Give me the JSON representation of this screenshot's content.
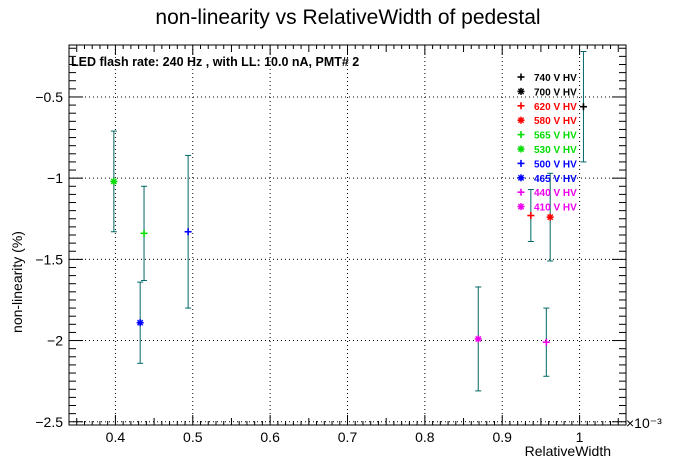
{
  "chart_data": {
    "type": "scatter",
    "title": "non-linearity vs RelativeWidth of pedestal",
    "xlabel": "RelativeWidth",
    "ylabel": "non-linearity (%)",
    "x_exponent_label": "×10⁻³",
    "annotation": "LED flash rate: 240 Hz , with LL: 10.0 nA, PMT# 2",
    "xlim": [
      0.34,
      1.06
    ],
    "ylim": [
      -2.52,
      -0.18
    ],
    "x_ticks": [
      0.4,
      0.5,
      0.6,
      0.7,
      0.8,
      0.9,
      1.0
    ],
    "x_tick_labels": [
      "0.4",
      "0.5",
      "0.6",
      "0.7",
      "0.8",
      "0.9",
      "1"
    ],
    "y_ticks": [
      -2.5,
      -2.0,
      -1.5,
      -1.0,
      -0.5
    ],
    "y_tick_labels": [
      "−2.5",
      "−2",
      "−1.5",
      "−1",
      "−0.5"
    ],
    "grid": true,
    "legend_position": "top-right",
    "error_bar_color": "#006666",
    "series": [
      {
        "name": "740 V HV",
        "color": "#000000",
        "marker": "plus",
        "x": 1.005,
        "y": -0.56,
        "err": 0.34
      },
      {
        "name": "700 V HV",
        "color": "#000000",
        "marker": "star",
        "x": null,
        "y": null,
        "err": null
      },
      {
        "name": "620 V HV",
        "color": "#ff0000",
        "marker": "plus",
        "x": 0.937,
        "y": -1.23,
        "err": 0.16
      },
      {
        "name": "580 V HV",
        "color": "#ff0000",
        "marker": "star",
        "x": 0.962,
        "y": -1.24,
        "err": 0.27
      },
      {
        "name": "565 V HV",
        "color": "#00dd00",
        "marker": "plus",
        "x": 0.437,
        "y": -1.34,
        "err": 0.29
      },
      {
        "name": "530 V HV",
        "color": "#00dd00",
        "marker": "star",
        "x": 0.398,
        "y": -1.02,
        "err": 0.31
      },
      {
        "name": "500 V HV",
        "color": "#0000ff",
        "marker": "plus",
        "x": 0.494,
        "y": -1.33,
        "err": 0.47
      },
      {
        "name": "465 V HV",
        "color": "#0000ff",
        "marker": "star",
        "x": 0.432,
        "y": -1.89,
        "err": 0.25
      },
      {
        "name": "440 V HV",
        "color": "#ee00ee",
        "marker": "plus",
        "x": 0.957,
        "y": -2.01,
        "err": 0.21
      },
      {
        "name": "410 V HV",
        "color": "#ee00ee",
        "marker": "star",
        "x": 0.869,
        "y": -1.99,
        "err": 0.32
      }
    ]
  }
}
